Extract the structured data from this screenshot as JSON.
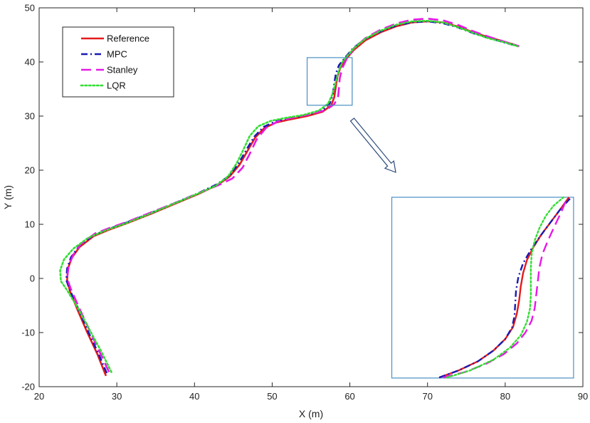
{
  "chart_data": {
    "type": "line",
    "xlabel": "X (m)",
    "ylabel": "Y (m)",
    "xlim": [
      20,
      90
    ],
    "ylim": [
      -20,
      50
    ],
    "xticks": [
      20,
      30,
      40,
      50,
      60,
      70,
      80,
      90
    ],
    "yticks": [
      -20,
      -10,
      0,
      10,
      20,
      30,
      40,
      50
    ],
    "grid": false,
    "legend_position": "top-left",
    "series": [
      {
        "name": "Reference",
        "color": "#e41a1c",
        "dash": "solid",
        "x": [
          28.6,
          27.5,
          26.2,
          25.0,
          24.0,
          23.6,
          23.7,
          24.2,
          25.2,
          27.0,
          29.0,
          31.5,
          34.5,
          37.5,
          40.5,
          43.0,
          44.5,
          45.8,
          46.8,
          47.8,
          49.0,
          50.5,
          52.0,
          54.5,
          56.5,
          57.6,
          58.0,
          58.2,
          58.4,
          58.8,
          59.5,
          60.5,
          62.0,
          64.0,
          66.0,
          68.0,
          70.0,
          72.0,
          74.0,
          76.0,
          78.0,
          80.0,
          81.8
        ],
        "y": [
          -18.0,
          -14.0,
          -10.0,
          -6.0,
          -2.5,
          -0.3,
          1.8,
          3.8,
          5.8,
          7.8,
          9.0,
          10.3,
          12.0,
          13.8,
          15.6,
          17.3,
          18.8,
          21.0,
          23.5,
          26.0,
          27.8,
          28.8,
          29.3,
          30.0,
          30.8,
          32.0,
          33.5,
          35.5,
          37.3,
          39.0,
          40.5,
          42.2,
          44.0,
          45.5,
          46.6,
          47.3,
          47.5,
          47.3,
          46.5,
          45.4,
          44.5,
          43.7,
          42.9
        ]
      },
      {
        "name": "MPC",
        "color": "#1a1ab3",
        "dash": "dashdot",
        "x": [
          28.7,
          27.6,
          26.3,
          25.1,
          24.0,
          23.5,
          23.6,
          24.1,
          25.1,
          26.9,
          28.9,
          31.4,
          34.4,
          37.4,
          40.4,
          42.9,
          44.5,
          45.7,
          46.7,
          47.7,
          48.9,
          50.4,
          51.9,
          54.4,
          56.4,
          57.4,
          57.8,
          58.0,
          58.2,
          58.6,
          59.4,
          60.4,
          61.9,
          63.9,
          65.9,
          67.9,
          69.9,
          71.9,
          73.9,
          75.9,
          77.9,
          79.9,
          81.7
        ],
        "y": [
          -17.5,
          -13.8,
          -9.8,
          -5.8,
          -2.3,
          -0.3,
          1.8,
          3.9,
          5.9,
          7.9,
          9.1,
          10.4,
          12.1,
          13.9,
          15.7,
          17.4,
          19.0,
          21.3,
          23.8,
          26.2,
          28.0,
          29.0,
          29.5,
          30.2,
          31.0,
          32.3,
          34.0,
          36.0,
          37.8,
          39.4,
          40.8,
          42.5,
          44.2,
          45.6,
          46.7,
          47.3,
          47.5,
          47.2,
          46.4,
          45.3,
          44.4,
          43.6,
          42.9
        ]
      },
      {
        "name": "Stanley",
        "color": "#e619e6",
        "dash": "dash",
        "x": [
          29.0,
          27.8,
          26.5,
          25.2,
          24.1,
          23.6,
          23.8,
          24.4,
          25.4,
          27.2,
          29.2,
          31.6,
          34.6,
          37.6,
          40.6,
          43.2,
          44.9,
          46.2,
          47.1,
          48.0,
          49.2,
          50.7,
          52.3,
          54.8,
          56.9,
          58.0,
          58.5,
          58.6,
          58.7,
          59.0,
          59.6,
          60.5,
          62.0,
          64.0,
          66.0,
          68.0,
          70.0,
          72.0,
          74.0,
          76.0,
          78.0,
          80.0,
          81.8
        ],
        "y": [
          -17.3,
          -13.6,
          -9.6,
          -5.6,
          -2.0,
          0.0,
          2.3,
          4.4,
          6.4,
          8.3,
          9.4,
          10.6,
          12.3,
          14.0,
          15.8,
          17.3,
          18.5,
          20.5,
          23.0,
          25.7,
          27.8,
          29.0,
          29.6,
          30.3,
          31.1,
          32.2,
          33.7,
          35.3,
          37.0,
          38.8,
          40.6,
          42.5,
          44.4,
          46.0,
          47.1,
          47.8,
          48.0,
          47.7,
          46.8,
          45.6,
          44.6,
          43.7,
          42.9
        ]
      },
      {
        "name": "LQR",
        "color": "#33dd33",
        "dash": "dot",
        "x": [
          29.3,
          28.0,
          26.5,
          25.0,
          23.6,
          22.8,
          22.7,
          23.2,
          24.4,
          26.3,
          28.4,
          31.0,
          34.0,
          37.0,
          40.0,
          42.7,
          44.3,
          45.4,
          46.3,
          47.1,
          48.2,
          49.8,
          51.5,
          54.0,
          56.0,
          57.2,
          57.8,
          58.2,
          58.6,
          59.0,
          59.6,
          60.5,
          62.0,
          64.0,
          66.0,
          68.0,
          70.0,
          72.0,
          74.0,
          76.0,
          78.0,
          80.0,
          81.6
        ],
        "y": [
          -17.3,
          -13.5,
          -9.5,
          -5.5,
          -2.2,
          -0.5,
          1.5,
          3.5,
          5.5,
          7.5,
          8.8,
          10.1,
          11.8,
          13.6,
          15.4,
          17.1,
          18.8,
          21.2,
          23.8,
          26.3,
          28.1,
          29.1,
          29.6,
          30.2,
          31.0,
          32.3,
          34.2,
          36.4,
          38.4,
          39.9,
          41.0,
          42.5,
          44.3,
          45.8,
          46.9,
          47.5,
          47.6,
          47.3,
          46.4,
          45.3,
          44.3,
          43.6,
          42.9
        ]
      }
    ],
    "zoom_box": {
      "x": [
        54.5,
        60.3
      ],
      "y": [
        32.0,
        40.8
      ]
    },
    "inset": {
      "box": {
        "x": [
          65.4,
          88.8
        ],
        "y": [
          -18.4,
          15.0
        ]
      },
      "series": [
        {
          "name": "Reference",
          "color": "#e41a1c",
          "dash": "solid",
          "x": [
            71.5,
            74.0,
            76.5,
            78.5,
            80.0,
            81.0,
            81.5,
            81.8,
            82.0,
            82.3,
            82.8,
            83.6,
            84.6,
            85.8,
            87.0,
            88.2
          ],
          "y": [
            -18.3,
            -17.0,
            -15.3,
            -13.3,
            -11.2,
            -9.0,
            -6.5,
            -4.0,
            -1.5,
            1.0,
            3.4,
            5.7,
            8.0,
            10.3,
            12.6,
            15.0
          ]
        },
        {
          "name": "MPC",
          "color": "#1a1ab3",
          "dash": "dashdot",
          "x": [
            71.5,
            74.0,
            76.5,
            78.5,
            80.0,
            80.9,
            81.2,
            81.3,
            81.4,
            81.7,
            82.3,
            83.3,
            84.5,
            85.8,
            87.0,
            88.5
          ],
          "y": [
            -18.3,
            -17.0,
            -15.3,
            -13.3,
            -11.2,
            -9.0,
            -6.8,
            -4.5,
            -2.2,
            0.3,
            2.8,
            5.3,
            7.8,
            10.3,
            12.6,
            15.0
          ]
        },
        {
          "name": "Stanley",
          "color": "#e619e6",
          "dash": "dash",
          "x": [
            72.0,
            74.8,
            77.5,
            79.8,
            81.5,
            82.6,
            83.4,
            83.8,
            84.0,
            84.2,
            84.4,
            84.8,
            85.5,
            86.3,
            87.2,
            88.0
          ],
          "y": [
            -18.3,
            -17.3,
            -15.8,
            -14.0,
            -12.0,
            -10.0,
            -7.8,
            -5.5,
            -3.0,
            -0.5,
            2.0,
            4.5,
            7.0,
            9.5,
            12.2,
            15.0
          ]
        },
        {
          "name": "LQR",
          "color": "#33dd33",
          "dash": "dot",
          "x": [
            72.5,
            75.5,
            78.5,
            80.6,
            82.0,
            82.8,
            83.2,
            83.3,
            83.3,
            83.3,
            83.4,
            83.8,
            84.4,
            85.2,
            86.2,
            87.5
          ],
          "y": [
            -18.3,
            -17.0,
            -15.0,
            -12.8,
            -10.5,
            -8.0,
            -5.5,
            -3.0,
            -0.5,
            2.0,
            4.5,
            7.0,
            9.3,
            11.5,
            13.4,
            15.0
          ]
        }
      ]
    }
  }
}
